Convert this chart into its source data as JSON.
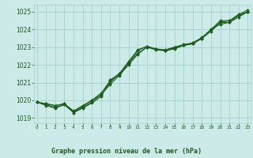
{
  "title": "Graphe pression niveau de la mer (hPa)",
  "hours": [
    0,
    1,
    2,
    3,
    4,
    5,
    6,
    7,
    8,
    9,
    10,
    11,
    12,
    13,
    14,
    15,
    16,
    17,
    18,
    19,
    20,
    21,
    22,
    23
  ],
  "ylim": [
    1018.7,
    1025.4
  ],
  "xlim": [
    -0.3,
    23.3
  ],
  "yticks": [
    1019,
    1020,
    1021,
    1022,
    1023,
    1024,
    1025
  ],
  "bg_color": "#cceae8",
  "grid_color": "#aad4d0",
  "line_color": "#1a5c1a",
  "title_color": "#1a5c1a",
  "series": [
    [
      1019.9,
      1019.8,
      1019.7,
      1019.8,
      1019.4,
      1019.7,
      1020.0,
      1020.3,
      1021.0,
      1021.5,
      1022.2,
      1022.85,
      1023.05,
      1022.9,
      1022.85,
      1023.0,
      1023.1,
      1023.2,
      1023.5,
      1024.0,
      1024.5,
      1024.5,
      1024.8,
      1025.0
    ],
    [
      1019.9,
      1019.75,
      1019.6,
      1019.75,
      1019.3,
      1019.6,
      1019.9,
      1020.3,
      1020.9,
      1021.4,
      1022.0,
      1022.6,
      1023.0,
      1022.85,
      1022.8,
      1022.95,
      1023.1,
      1023.2,
      1023.5,
      1024.0,
      1024.3,
      1024.4,
      1024.7,
      1025.0
    ],
    [
      1019.9,
      1019.8,
      1019.7,
      1019.8,
      1019.35,
      1019.65,
      1020.0,
      1020.4,
      1021.1,
      1021.45,
      1022.1,
      1022.65,
      1023.0,
      1022.9,
      1022.8,
      1023.0,
      1023.15,
      1023.25,
      1023.55,
      1024.0,
      1024.4,
      1024.5,
      1024.85,
      1025.1
    ],
    [
      1019.9,
      1019.7,
      1019.55,
      1019.75,
      1019.3,
      1019.55,
      1019.85,
      1020.2,
      1021.15,
      1021.5,
      1022.1,
      1022.8,
      1023.05,
      1022.9,
      1022.8,
      1022.9,
      1023.1,
      1023.2,
      1023.5,
      1023.9,
      1024.4,
      1024.4,
      1024.8,
      1025.0
    ]
  ]
}
